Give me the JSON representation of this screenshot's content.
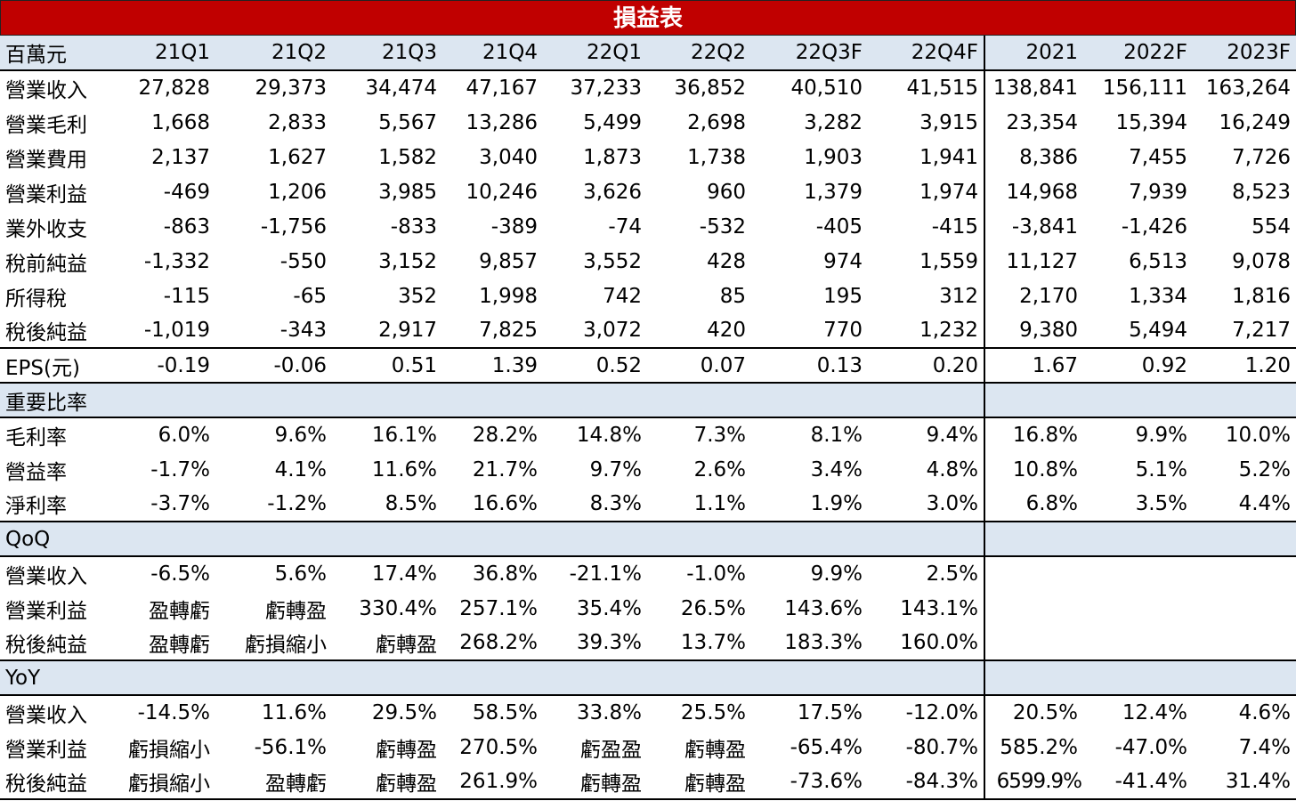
{
  "title": "損益表",
  "header": [
    "百萬元",
    "21Q1",
    "21Q2",
    "21Q3",
    "21Q4",
    "22Q1",
    "22Q2",
    "22Q3F",
    "22Q4F",
    "2021",
    "2022F",
    "2023F"
  ],
  "income_rows": [
    [
      "營業收入",
      "27,828",
      "29,373",
      "34,474",
      "47,167",
      "37,233",
      "36,852",
      "40,510",
      "41,515",
      "138,841",
      "156,111",
      "163,264"
    ],
    [
      "營業毛利",
      "1,668",
      "2,833",
      "5,567",
      "13,286",
      "5,499",
      "2,698",
      "3,282",
      "3,915",
      "23,354",
      "15,394",
      "16,249"
    ],
    [
      "營業費用",
      "2,137",
      "1,627",
      "1,582",
      "3,040",
      "1,873",
      "1,738",
      "1,903",
      "1,941",
      "8,386",
      "7,455",
      "7,726"
    ],
    [
      "營業利益",
      "-469",
      "1,206",
      "3,985",
      "10,246",
      "3,626",
      "960",
      "1,379",
      "1,974",
      "14,968",
      "7,939",
      "8,523"
    ],
    [
      "業外收支",
      "-863",
      "-1,756",
      "-833",
      "-389",
      "-74",
      "-532",
      "-405",
      "-415",
      "-3,841",
      "-1,426",
      "554"
    ],
    [
      "稅前純益",
      "-1,332",
      "-550",
      "3,152",
      "9,857",
      "3,552",
      "428",
      "974",
      "1,559",
      "11,127",
      "6,513",
      "9,078"
    ],
    [
      "所得稅",
      "-115",
      "-65",
      "352",
      "1,998",
      "742",
      "85",
      "195",
      "312",
      "2,170",
      "1,334",
      "1,816"
    ],
    [
      "稅後純益",
      "-1,019",
      "-343",
      "2,917",
      "7,825",
      "3,072",
      "420",
      "770",
      "1,232",
      "9,380",
      "5,494",
      "7,217"
    ]
  ],
  "eps_row": [
    "EPS(元)",
    "-0.19",
    "-0.06",
    "0.51",
    "1.39",
    "0.52",
    "0.07",
    "0.13",
    "0.20",
    "1.67",
    "0.92",
    "1.20"
  ],
  "ratio_section": "重要比率",
  "ratio_rows": [
    [
      "毛利率",
      "6.0%",
      "9.6%",
      "16.1%",
      "28.2%",
      "14.8%",
      "7.3%",
      "8.1%",
      "9.4%",
      "16.8%",
      "9.9%",
      "10.0%"
    ],
    [
      "營益率",
      "-1.7%",
      "4.1%",
      "11.6%",
      "21.7%",
      "9.7%",
      "2.6%",
      "3.4%",
      "4.8%",
      "10.8%",
      "5.1%",
      "5.2%"
    ],
    [
      "淨利率",
      "-3.7%",
      "-1.2%",
      "8.5%",
      "16.6%",
      "8.3%",
      "1.1%",
      "1.9%",
      "3.0%",
      "6.8%",
      "3.5%",
      "4.4%"
    ]
  ],
  "qoq_section": "QoQ",
  "qoq_rows": [
    [
      "營業收入",
      "-6.5%",
      "5.6%",
      "17.4%",
      "36.8%",
      "-21.1%",
      "-1.0%",
      "9.9%",
      "2.5%",
      "",
      "",
      ""
    ],
    [
      "營業利益",
      "盈轉虧",
      "虧轉盈",
      "330.4%",
      "257.1%",
      "35.4%",
      "26.5%",
      "143.6%",
      "143.1%",
      "",
      "",
      ""
    ],
    [
      "稅後純益",
      "盈轉虧",
      "虧損縮小",
      "虧轉盈",
      "268.2%",
      "39.3%",
      "13.7%",
      "183.3%",
      "160.0%",
      "",
      "",
      ""
    ]
  ],
  "yoy_section": "YoY",
  "yoy_rows": [
    [
      "營業收入",
      "-14.5%",
      "11.6%",
      "29.5%",
      "58.5%",
      "33.8%",
      "25.5%",
      "17.5%",
      "-12.0%",
      "20.5%",
      "12.4%",
      "4.6%"
    ],
    [
      "營業利益",
      "虧損縮小",
      "-56.1%",
      "虧轉盈",
      "270.5%",
      "虧盈盈",
      "虧轉盈",
      "-65.4%",
      "-80.7%",
      "585.2%",
      "-47.0%",
      "7.4%"
    ],
    [
      "稅後純益",
      "虧損縮小",
      "盈轉虧",
      "虧轉盈",
      "261.9%",
      "虧轉盈",
      "虧轉盈",
      "-73.6%",
      "-84.3%",
      "6599.9%",
      "-41.4%",
      "31.4%"
    ]
  ],
  "colors": {
    "title_bg": "#c00000",
    "title_fg": "#ffffff",
    "band_bg": "#dce6f1"
  }
}
